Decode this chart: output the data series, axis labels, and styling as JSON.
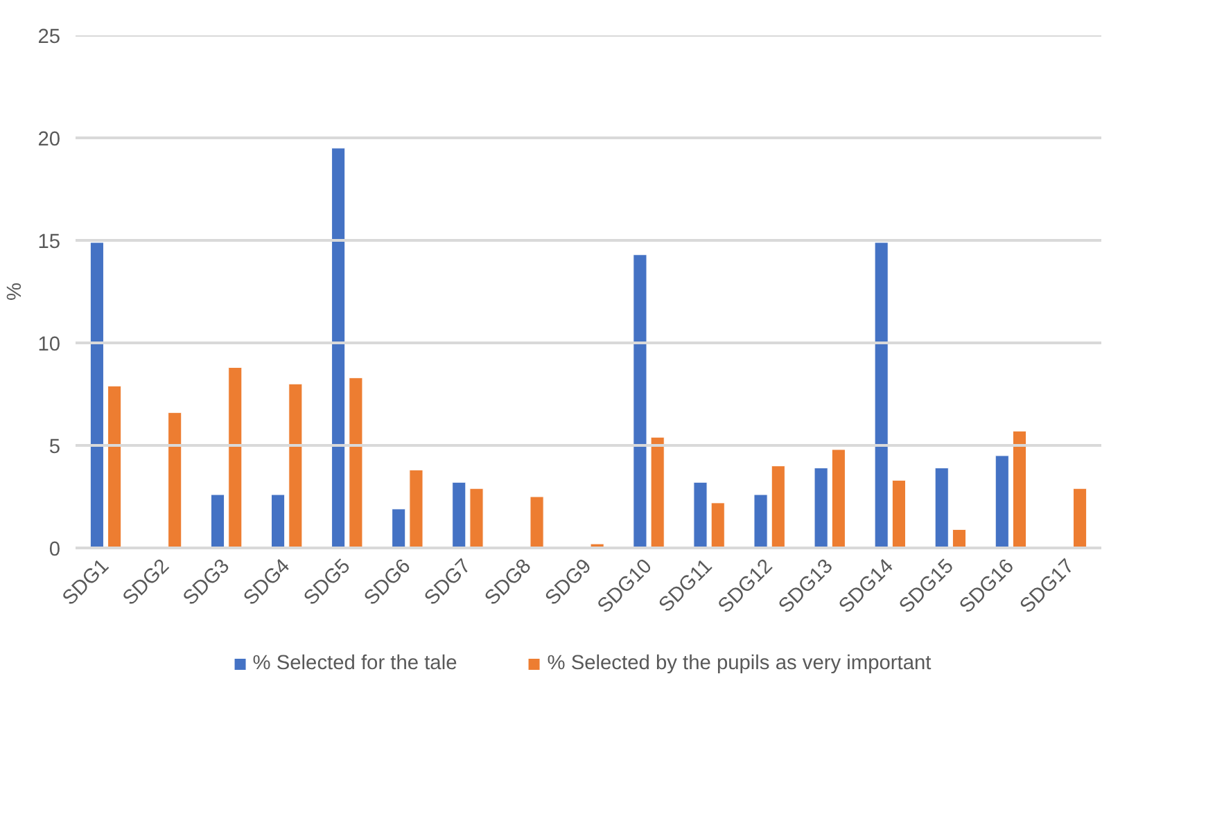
{
  "chart_data": {
    "type": "bar",
    "ylabel": "%",
    "categories": [
      "SDG1",
      "SDG2",
      "SDG3",
      "SDG4",
      "SDG5",
      "SDG6",
      "SDG7",
      "SDG8",
      "SDG9",
      "SDG10",
      "SDG11",
      "SDG12",
      "SDG13",
      "SDG14",
      "SDG15",
      "SDG16",
      "SDG17"
    ],
    "series": [
      {
        "name": "% Selected for the tale",
        "color": "#4472c4",
        "values": [
          14.9,
          null,
          2.6,
          2.6,
          19.5,
          1.9,
          3.2,
          null,
          null,
          14.3,
          3.2,
          2.6,
          3.9,
          14.9,
          3.9,
          4.5,
          null
        ]
      },
      {
        "name": "% Selected by the pupils as very important",
        "color": "#ed7d31",
        "values": [
          7.9,
          6.6,
          8.8,
          8.0,
          8.3,
          3.8,
          2.9,
          2.5,
          0.2,
          5.4,
          2.2,
          4.0,
          4.8,
          3.3,
          0.9,
          5.7,
          2.9
        ]
      }
    ],
    "ylim": [
      0,
      25
    ],
    "yticks": [
      0,
      5,
      10,
      15,
      20,
      25
    ],
    "grid": "y",
    "legend": "bottom"
  }
}
